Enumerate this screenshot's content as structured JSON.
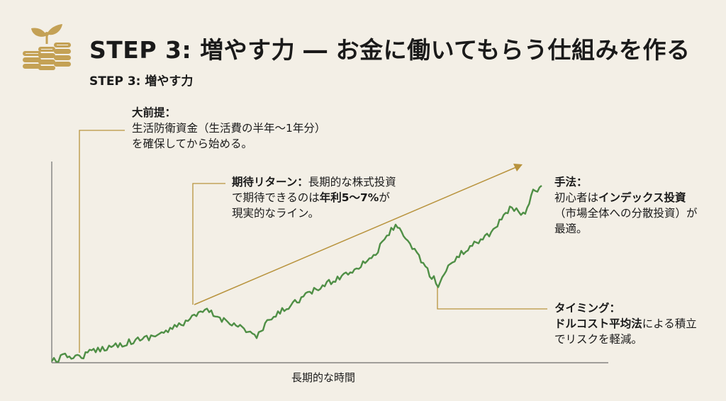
{
  "header": {
    "icon": "coins-sprout-icon",
    "title": "STEP 3: 増やす力 ― お金に働いてもらう仕組みを作る",
    "subtitle": "STEP 3: 増やす力"
  },
  "notes": {
    "premise": {
      "heading": "大前提：",
      "line1": "生活防衛資金（生活費の半年〜1年分）",
      "line2": "を確保してから始める。"
    },
    "expected_return": {
      "heading": "期待リターン：",
      "text_a": "長期的な株式投資",
      "text_b": "で期待できるのは",
      "bold_b": "年利5〜7%",
      "text_b2": "が",
      "line3": "現実的なライン。"
    },
    "method": {
      "heading": "手法：",
      "text_a": "初心者は",
      "bold_a": "インデックス投資",
      "line2": "（市場全体への分散投資）が",
      "line3": "最適。"
    },
    "timing": {
      "heading": "タイミング：",
      "bold_a": "ドルコスト平均法",
      "text_a": "による積立",
      "line2": "でリスクを軽減。"
    }
  },
  "axis": {
    "x_label": "長期的な時間"
  },
  "colors": {
    "background": "#f3efe6",
    "line": "#4f8f46",
    "accent_gold": "#b8933d",
    "text": "#1a1a1a"
  }
}
